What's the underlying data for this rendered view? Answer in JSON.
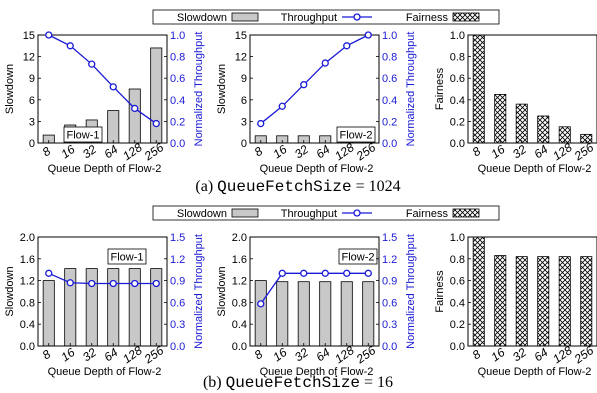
{
  "colors": {
    "bar_fill": "#c8c8c8",
    "throughput_line": "#1a1ad6",
    "axis": "#000000",
    "hatch_bg": "#ffffff"
  },
  "legend": {
    "slowdown": "Slowdown",
    "throughput": "Throughput",
    "fairness": "Fairness"
  },
  "captions": {
    "a_prefix": "(a) ",
    "a_mono": "QueueFetchSize",
    "a_suffix": " = 1024",
    "b_prefix": "(b) ",
    "b_mono": "QueueFetchSize",
    "b_suffix": " = 16"
  },
  "chart_data": [
    {
      "id": "a1",
      "type": "bar",
      "flow_label": "Flow-1",
      "categories": [
        "8",
        "16",
        "32",
        "64",
        "128",
        "256"
      ],
      "series": [
        {
          "name": "Slowdown",
          "values": [
            1.1,
            2.5,
            3.2,
            4.5,
            7.5,
            13.2
          ]
        },
        {
          "name": "Throughput",
          "values": [
            1.0,
            0.9,
            0.73,
            0.52,
            0.32,
            0.18
          ]
        }
      ],
      "xlabel": "Queue Depth of Flow-2",
      "ylabel": "Slowdown",
      "y2label": "Normalized Throughput",
      "ylim": [
        0,
        15
      ],
      "yticks": [
        "0",
        "3",
        "6",
        "9",
        "12",
        "15"
      ],
      "y2lim": [
        0,
        1.0
      ],
      "y2ticks": [
        "0.0",
        "0.2",
        "0.4",
        "0.6",
        "0.8",
        "1.0"
      ]
    },
    {
      "id": "a2",
      "type": "bar",
      "flow_label": "Flow-2",
      "categories": [
        "8",
        "16",
        "32",
        "64",
        "128",
        "256"
      ],
      "series": [
        {
          "name": "Slowdown",
          "values": [
            1.0,
            1.0,
            1.0,
            1.0,
            1.0,
            1.0
          ]
        },
        {
          "name": "Throughput",
          "values": [
            0.18,
            0.34,
            0.54,
            0.74,
            0.9,
            1.0
          ]
        }
      ],
      "xlabel": "Queue Depth of Flow-2",
      "ylabel": "Slowdown",
      "y2label": "Normalized Throughput",
      "ylim": [
        0,
        15
      ],
      "yticks": [
        "0",
        "3",
        "6",
        "9",
        "12",
        "15"
      ],
      "y2lim": [
        0,
        1.0
      ],
      "y2ticks": [
        "0.0",
        "0.2",
        "0.4",
        "0.6",
        "0.8",
        "1.0"
      ]
    },
    {
      "id": "a3",
      "type": "bar",
      "categories": [
        "8",
        "16",
        "32",
        "64",
        "128",
        "256"
      ],
      "series": [
        {
          "name": "Fairness",
          "values": [
            1.0,
            0.45,
            0.36,
            0.25,
            0.15,
            0.08
          ]
        }
      ],
      "xlabel": "Queue Depth of Flow-2",
      "ylabel": "Fairness",
      "ylim": [
        0,
        1.0
      ],
      "yticks": [
        "0.0",
        "0.2",
        "0.4",
        "0.6",
        "0.8",
        "1.0"
      ]
    },
    {
      "id": "b1",
      "type": "bar",
      "flow_label": "Flow-1",
      "categories": [
        "8",
        "16",
        "32",
        "64",
        "128",
        "256"
      ],
      "series": [
        {
          "name": "Slowdown",
          "values": [
            1.2,
            1.42,
            1.42,
            1.42,
            1.42,
            1.42
          ]
        },
        {
          "name": "Throughput",
          "values": [
            1.0,
            0.87,
            0.86,
            0.86,
            0.86,
            0.86
          ]
        }
      ],
      "xlabel": "Queue Depth of Flow-2",
      "ylabel": "Slowdown",
      "y2label": "Normalized Throughput",
      "ylim": [
        0,
        2.0
      ],
      "yticks": [
        "0.0",
        "0.4",
        "0.8",
        "1.2",
        "1.6",
        "2.0"
      ],
      "y2lim": [
        0,
        1.5
      ],
      "y2ticks": [
        "0.0",
        "0.3",
        "0.6",
        "0.9",
        "1.2",
        "1.5"
      ]
    },
    {
      "id": "b2",
      "type": "bar",
      "flow_label": "Flow-2",
      "categories": [
        "8",
        "16",
        "32",
        "64",
        "128",
        "256"
      ],
      "series": [
        {
          "name": "Slowdown",
          "values": [
            1.2,
            1.18,
            1.18,
            1.18,
            1.18,
            1.18
          ]
        },
        {
          "name": "Throughput",
          "values": [
            0.58,
            1.0,
            1.0,
            1.0,
            1.0,
            1.0
          ]
        }
      ],
      "xlabel": "Queue Depth of Flow-2",
      "ylabel": "Slowdown",
      "y2label": "Normalized Throughput",
      "ylim": [
        0,
        2.0
      ],
      "yticks": [
        "0.0",
        "0.4",
        "0.8",
        "1.2",
        "1.6",
        "2.0"
      ],
      "y2lim": [
        0,
        1.5
      ],
      "y2ticks": [
        "0.0",
        "0.3",
        "0.6",
        "0.9",
        "1.2",
        "1.5"
      ]
    },
    {
      "id": "b3",
      "type": "bar",
      "categories": [
        "8",
        "16",
        "32",
        "64",
        "128",
        "256"
      ],
      "series": [
        {
          "name": "Fairness",
          "values": [
            1.0,
            0.83,
            0.82,
            0.82,
            0.82,
            0.82
          ]
        }
      ],
      "xlabel": "Queue Depth of Flow-2",
      "ylabel": "Fairness",
      "ylim": [
        0,
        1.0
      ],
      "yticks": [
        "0.0",
        "0.2",
        "0.4",
        "0.6",
        "0.8",
        "1.0"
      ]
    }
  ]
}
